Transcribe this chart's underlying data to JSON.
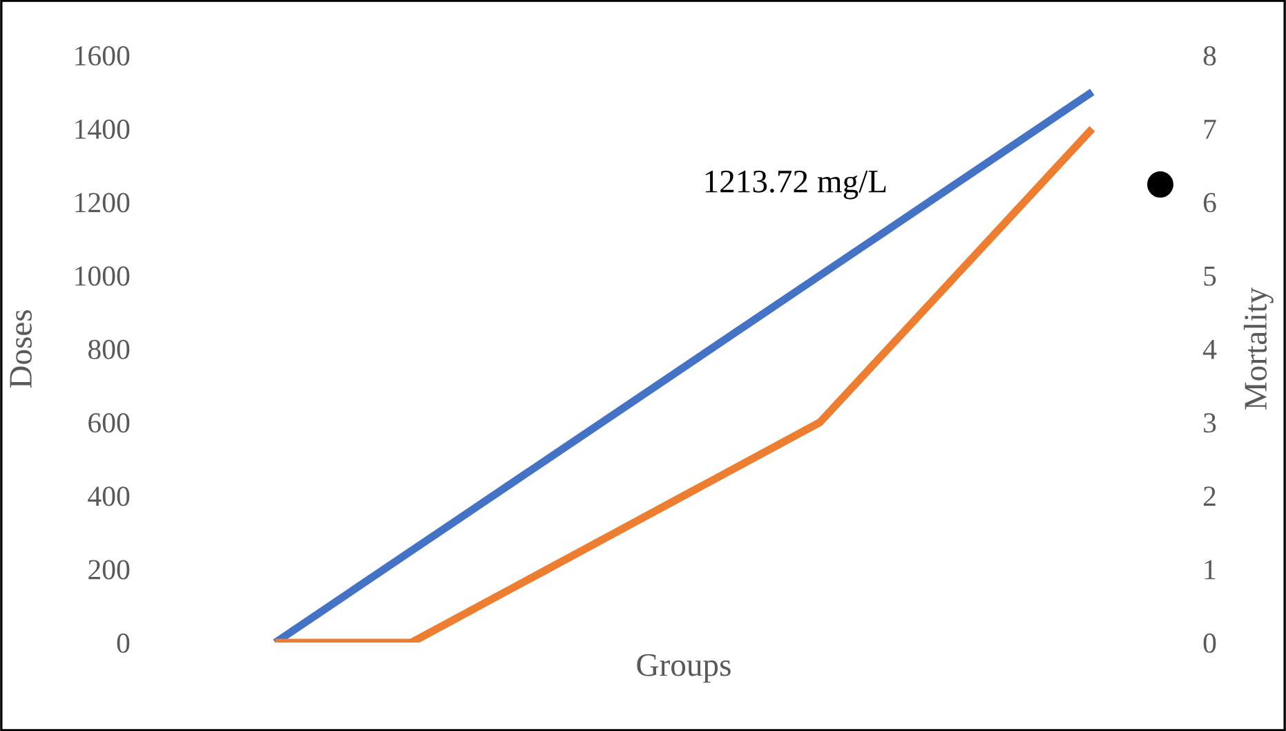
{
  "chart_data": {
    "type": "line",
    "xlabel": "Groups",
    "ylabel": "Doses",
    "y2label": "Mortality",
    "categories": [
      null,
      null,
      null,
      null,
      null,
      null,
      null
    ],
    "series": [
      {
        "color": "#4472c4",
        "values": [
          0,
          250,
          500,
          750,
          1000,
          1250,
          1500
        ]
      },
      {
        "color": "#ed7d31",
        "axis": "y2",
        "values": [
          0,
          0,
          1,
          2,
          3,
          5,
          7
        ]
      }
    ],
    "ylim": [
      0,
      1600
    ],
    "yticks": [
      0,
      200,
      400,
      600,
      800,
      1000,
      1200,
      1400,
      1600
    ],
    "y2lim": [
      0,
      8
    ],
    "y2ticks": [
      0,
      1,
      2,
      3,
      4,
      5,
      6,
      7,
      8
    ],
    "annotations": [
      "1213.72 mg/L"
    ],
    "grid": false,
    "legend": false,
    "marker": "none",
    "line_style": "solid"
  }
}
